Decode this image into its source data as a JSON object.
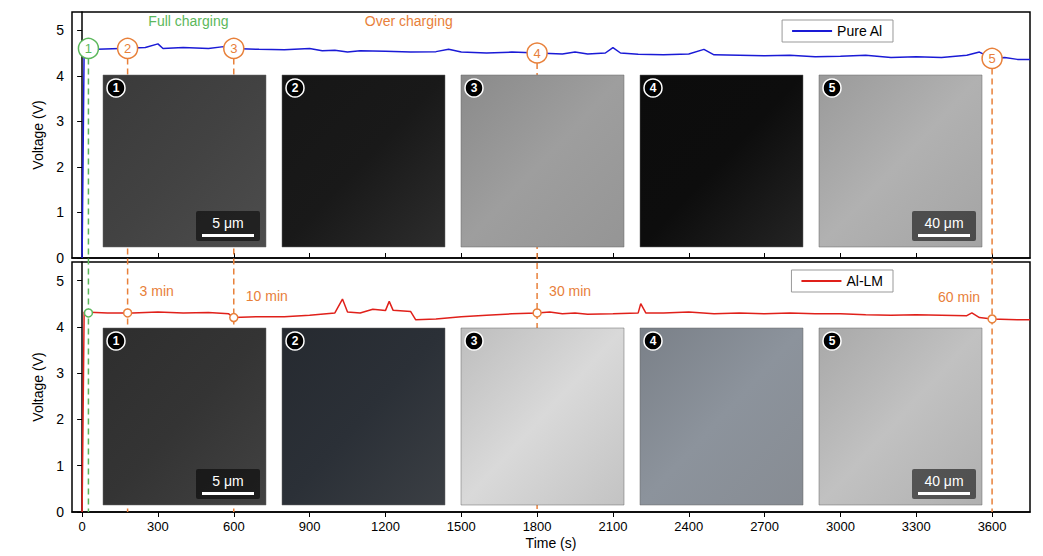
{
  "chart_data": [
    {
      "type": "line",
      "x": [
        0,
        8,
        60,
        150,
        250,
        300,
        320,
        400,
        500,
        560,
        600,
        700,
        800,
        900,
        950,
        1000,
        1050,
        1100,
        1200,
        1300,
        1400,
        1450,
        1500,
        1600,
        1700,
        1800,
        1900,
        1950,
        2000,
        2070,
        2100,
        2130,
        2200,
        2300,
        2400,
        2460,
        2500,
        2600,
        2700,
        2800,
        2900,
        3000,
        3100,
        3200,
        3300,
        3400,
        3500,
        3550,
        3600,
        3650,
        3700,
        3750
      ],
      "series": [
        {
          "name": "Pure Al",
          "color": "#1a1ad6",
          "values": [
            0,
            4.6,
            4.58,
            4.6,
            4.62,
            4.7,
            4.6,
            4.62,
            4.6,
            4.64,
            4.6,
            4.58,
            4.57,
            4.6,
            4.55,
            4.56,
            4.52,
            4.55,
            4.54,
            4.52,
            4.53,
            4.58,
            4.52,
            4.5,
            4.52,
            4.5,
            4.48,
            4.52,
            4.48,
            4.5,
            4.62,
            4.5,
            4.47,
            4.46,
            4.48,
            4.58,
            4.46,
            4.45,
            4.44,
            4.45,
            4.42,
            4.43,
            4.45,
            4.4,
            4.42,
            4.4,
            4.45,
            4.52,
            4.38,
            4.4,
            4.36,
            4.36
          ]
        }
      ],
      "xlim": [
        -40,
        3750
      ],
      "xticks": [
        0,
        300,
        600,
        900,
        1200,
        1500,
        1800,
        2100,
        2400,
        2700,
        3000,
        3300,
        3600
      ],
      "ylim": [
        0,
        5.4
      ],
      "yticks": [
        0,
        1,
        2,
        3,
        4,
        5
      ],
      "y_label": "Voltage (V)",
      "legend": "top-right",
      "tick_labels": "y",
      "grid": false,
      "markers": [
        {
          "x": 25,
          "y": 4.6,
          "label": "1",
          "color": "#5cb85c"
        },
        {
          "x": 180,
          "y": 4.6,
          "label": "2",
          "color": "#e8803a"
        },
        {
          "x": 600,
          "y": 4.6,
          "label": "3",
          "color": "#e8803a"
        },
        {
          "x": 1800,
          "y": 4.5,
          "label": "4",
          "color": "#e8803a"
        },
        {
          "x": 3600,
          "y": 4.38,
          "label": "5",
          "color": "#e8803a"
        }
      ],
      "annotations": [
        {
          "text": "Full charging",
          "color": "#5cb85c"
        },
        {
          "text": "Over charging",
          "color": "#e8803a"
        }
      ],
      "insets": [
        {
          "label": "1",
          "scale_bar": "5 μm"
        },
        {
          "label": "2"
        },
        {
          "label": "3"
        },
        {
          "label": "4"
        },
        {
          "label": "5",
          "scale_bar": "40 μm"
        }
      ]
    },
    {
      "type": "line",
      "x": [
        0,
        8,
        100,
        200,
        300,
        400,
        500,
        580,
        600,
        700,
        800,
        900,
        1000,
        1030,
        1050,
        1100,
        1150,
        1200,
        1215,
        1230,
        1300,
        1320,
        1400,
        1500,
        1600,
        1700,
        1800,
        1850,
        1900,
        1950,
        2000,
        2100,
        2200,
        2210,
        2230,
        2300,
        2400,
        2500,
        2600,
        2700,
        2800,
        2900,
        3000,
        3100,
        3200,
        3300,
        3400,
        3500,
        3520,
        3550,
        3600,
        3700,
        3750
      ],
      "series": [
        {
          "name": "Al-LM",
          "color": "#e0201a",
          "values": [
            0,
            4.32,
            4.3,
            4.3,
            4.32,
            4.3,
            4.31,
            4.28,
            4.2,
            4.22,
            4.22,
            4.25,
            4.3,
            4.6,
            4.32,
            4.3,
            4.38,
            4.35,
            4.55,
            4.36,
            4.33,
            4.15,
            4.17,
            4.22,
            4.25,
            4.28,
            4.3,
            4.32,
            4.28,
            4.3,
            4.27,
            4.28,
            4.3,
            4.5,
            4.3,
            4.3,
            4.32,
            4.28,
            4.3,
            4.28,
            4.3,
            4.28,
            4.28,
            4.26,
            4.25,
            4.26,
            4.25,
            4.24,
            4.3,
            4.2,
            4.17,
            4.15,
            4.15
          ]
        }
      ],
      "xlim": [
        -40,
        3750
      ],
      "xticks": [
        0,
        300,
        600,
        900,
        1200,
        1500,
        1800,
        2100,
        2400,
        2700,
        3000,
        3300,
        3600
      ],
      "ylim": [
        0,
        5.4
      ],
      "yticks": [
        0,
        1,
        2,
        3,
        4,
        5
      ],
      "x_label": "Time (s)",
      "y_label": "Voltage (V)",
      "legend": "top-right",
      "grid": false,
      "markers": [
        {
          "x": 25,
          "y": 4.3,
          "color": "#5cb85c"
        },
        {
          "x": 180,
          "y": 4.3,
          "color": "#e8803a",
          "time_label": "3 min"
        },
        {
          "x": 600,
          "y": 4.2,
          "color": "#e8803a",
          "time_label": "10 min"
        },
        {
          "x": 1800,
          "y": 4.3,
          "color": "#e8803a",
          "time_label": "30 min"
        },
        {
          "x": 3600,
          "y": 4.17,
          "color": "#e8803a",
          "time_label": "60 min"
        }
      ],
      "insets": [
        {
          "label": "1",
          "scale_bar": "5 μm"
        },
        {
          "label": "2"
        },
        {
          "label": "3"
        },
        {
          "label": "4"
        },
        {
          "label": "5",
          "scale_bar": "40 μm"
        }
      ]
    }
  ]
}
